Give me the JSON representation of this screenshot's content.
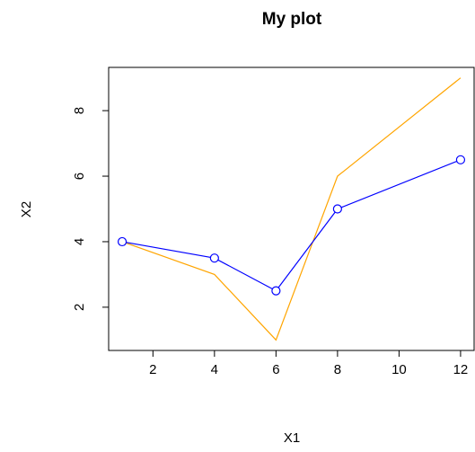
{
  "chart_data": {
    "type": "line",
    "title": "My plot",
    "x_label": "X1",
    "y_label": "X2",
    "x": [
      1,
      4,
      6,
      8,
      12
    ],
    "series": [
      {
        "color": "#0000ff",
        "values": [
          4,
          3.5,
          2.5,
          5,
          6.5
        ],
        "marker": "circle"
      },
      {
        "color": "#ffa500",
        "values": [
          4,
          3,
          1,
          6,
          9
        ]
      }
    ],
    "xlim": [
      0.56,
      12.44
    ],
    "ylim": [
      0.68,
      9.32
    ],
    "xticks": [
      2,
      4,
      6,
      8,
      10,
      12
    ],
    "yticks": [
      2,
      4,
      6,
      8
    ]
  }
}
